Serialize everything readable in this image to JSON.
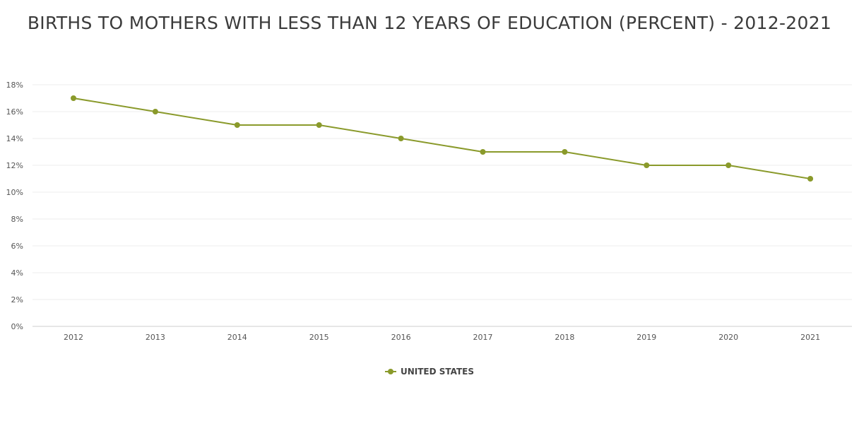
{
  "chart_data": {
    "type": "line",
    "title": "BIRTHS TO MOTHERS WITH LESS THAN 12 YEARS OF EDUCATION (PERCENT) - 2012-2021",
    "xlabel": "",
    "ylabel": "",
    "categories": [
      "2012",
      "2013",
      "2014",
      "2015",
      "2016",
      "2017",
      "2018",
      "2019",
      "2020",
      "2021"
    ],
    "yticks": [
      0,
      2,
      4,
      6,
      8,
      10,
      12,
      14,
      16,
      18
    ],
    "ytick_labels": [
      "0%",
      "2%",
      "4%",
      "6%",
      "8%",
      "10%",
      "12%",
      "14%",
      "16%",
      "18%"
    ],
    "ylim": [
      0,
      18
    ],
    "grid": true,
    "legend_position": "bottom-center",
    "series": [
      {
        "name": "UNITED STATES",
        "color": "#8a9a2b",
        "values": [
          17,
          16,
          15,
          15,
          14,
          13,
          13,
          12,
          12,
          11
        ]
      }
    ]
  }
}
